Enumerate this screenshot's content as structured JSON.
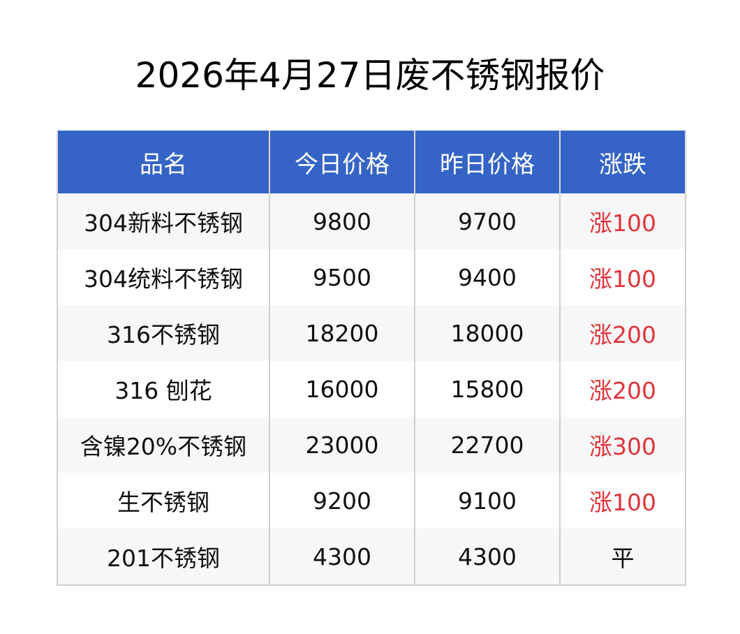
{
  "title": "2026年4月27日废不锈钢报价",
  "colors": {
    "header_bg": "#3564c6",
    "rise_text": "#e0343a"
  },
  "table": {
    "headers": [
      "品名",
      "今日价格",
      "昨日价格",
      "涨跌"
    ],
    "rows": [
      {
        "name": "304新料不锈钢",
        "today": "9800",
        "yesterday": "9700",
        "change": "涨100",
        "trend": "up"
      },
      {
        "name": "304统料不锈钢",
        "today": "9500",
        "yesterday": "9400",
        "change": "涨100",
        "trend": "up"
      },
      {
        "name": "316不锈钢",
        "today": "18200",
        "yesterday": "18000",
        "change": "涨200",
        "trend": "up"
      },
      {
        "name": "316 刨花",
        "today": "16000",
        "yesterday": "15800",
        "change": "涨200",
        "trend": "up"
      },
      {
        "name": "含镍20%不锈钢",
        "today": "23000",
        "yesterday": "22700",
        "change": "涨300",
        "trend": "up"
      },
      {
        "name": "生不锈钢",
        "today": "9200",
        "yesterday": "9100",
        "change": "涨100",
        "trend": "up"
      },
      {
        "name": "201不锈钢",
        "today": "4300",
        "yesterday": "4300",
        "change": "平",
        "trend": "flat"
      }
    ]
  }
}
